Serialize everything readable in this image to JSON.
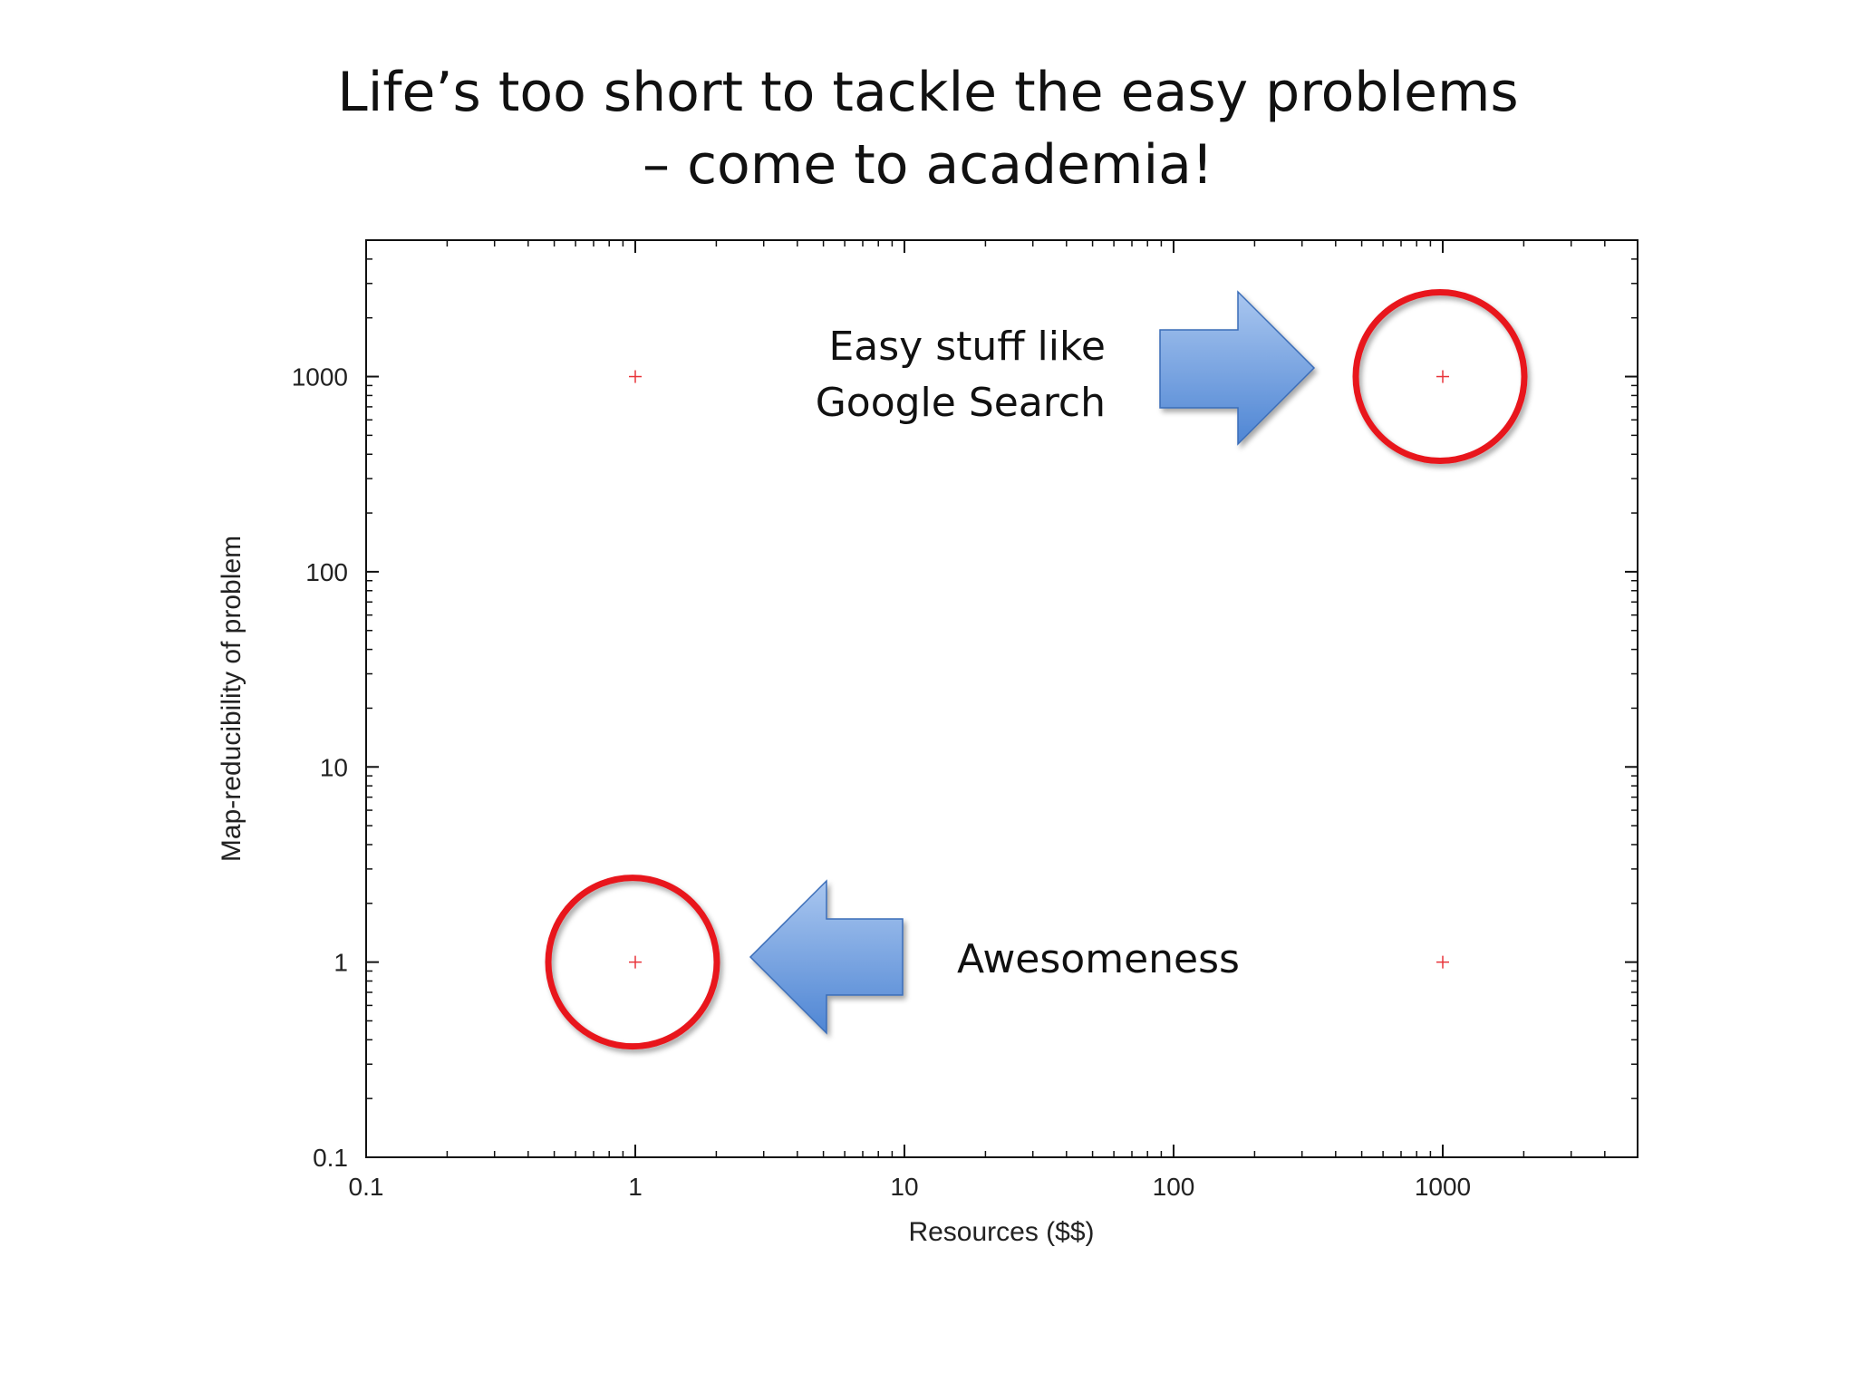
{
  "slide": {
    "title_line1": "Life’s too short to tackle the easy problems",
    "title_line2": "– come to academia!",
    "annotation_easy_line1": "Easy stuff like",
    "annotation_easy_line2": "Google Search",
    "annotation_awesome": "Awesomeness"
  },
  "colors": {
    "point": "#e8343a",
    "highlight_circle": "#e8141c",
    "arrow_fill_top": "#a9c6ef",
    "arrow_fill_bottom": "#4f86d4",
    "arrow_stroke": "#3a6db8"
  },
  "chart_data": {
    "type": "scatter",
    "xlabel": "Resources ($$)",
    "ylabel": "Map-reducibility of problem",
    "xscale": "log",
    "yscale": "log",
    "xlim": [
      0.1,
      5000
    ],
    "ylim": [
      0.1,
      5000
    ],
    "xticks": [
      "0.1",
      "1",
      "10",
      "100",
      "1000"
    ],
    "yticks": [
      "0.1",
      "1",
      "10",
      "100",
      "1000"
    ],
    "marker": "+",
    "points": [
      {
        "x": 1,
        "y": 1000
      },
      {
        "x": 1000,
        "y": 1000
      },
      {
        "x": 1,
        "y": 1
      },
      {
        "x": 1000,
        "y": 1
      }
    ],
    "highlighted": [
      {
        "x": 1000,
        "y": 1000
      },
      {
        "x": 1,
        "y": 1
      }
    ],
    "grid": false
  }
}
